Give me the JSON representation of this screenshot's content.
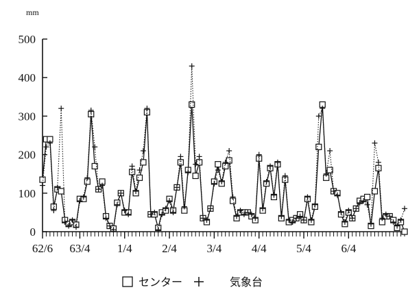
{
  "chart_data": {
    "type": "line",
    "unit_label": "mm",
    "ylim": [
      0,
      500
    ],
    "yticks": [
      0,
      100,
      200,
      300,
      400,
      500
    ],
    "ytick_labels": [
      "0",
      "100",
      "200",
      "300",
      "400",
      "500"
    ],
    "xlim": [
      0,
      97
    ],
    "xticks": [
      {
        "x": 0,
        "label": "62/6"
      },
      {
        "x": 10,
        "label": "63/4"
      },
      {
        "x": 22,
        "label": "1/4"
      },
      {
        "x": 34,
        "label": "2/4"
      },
      {
        "x": 46,
        "label": "3/4"
      },
      {
        "x": 58,
        "label": "4/4"
      },
      {
        "x": 70,
        "label": "5/4"
      },
      {
        "x": 82,
        "label": "6/4"
      }
    ],
    "grid": false,
    "legend_position": "bottom-center",
    "legend": [
      "センター",
      "気象台"
    ],
    "series": [
      {
        "name": "センター",
        "marker": "square",
        "line": "solid",
        "values": [
          135,
          240,
          240,
          65,
          110,
          105,
          30,
          20,
          25,
          18,
          85,
          85,
          130,
          305,
          170,
          110,
          130,
          40,
          15,
          8,
          75,
          100,
          50,
          50,
          155,
          100,
          140,
          180,
          310,
          45,
          45,
          10,
          50,
          55,
          85,
          55,
          115,
          180,
          55,
          160,
          330,
          145,
          180,
          35,
          25,
          60,
          130,
          175,
          125,
          170,
          185,
          80,
          35,
          50,
          50,
          50,
          40,
          30,
          190,
          55,
          125,
          165,
          90,
          175,
          35,
          135,
          25,
          30,
          35,
          45,
          30,
          85,
          25,
          65,
          220,
          330,
          140,
          160,
          105,
          100,
          45,
          20,
          50,
          35,
          60,
          80,
          85,
          90,
          15,
          105,
          165,
          25,
          40,
          40,
          30,
          10,
          25,
          0
        ]
      },
      {
        "name": "気象台",
        "marker": "plus",
        "line": "dotted",
        "values": [
          120,
          220,
          230,
          55,
          115,
          320,
          25,
          15,
          30,
          12,
          80,
          90,
          140,
          315,
          220,
          110,
          120,
          35,
          15,
          5,
          70,
          100,
          55,
          45,
          170,
          105,
          160,
          210,
          320,
          45,
          50,
          5,
          45,
          60,
          80,
          50,
          115,
          195,
          65,
          155,
          430,
          175,
          195,
          35,
          30,
          60,
          125,
          160,
          130,
          180,
          210,
          90,
          40,
          55,
          45,
          50,
          45,
          35,
          200,
          60,
          130,
          170,
          95,
          180,
          40,
          145,
          30,
          25,
          35,
          40,
          30,
          90,
          30,
          70,
          300,
          320,
          150,
          210,
          105,
          95,
          50,
          25,
          55,
          35,
          60,
          75,
          80,
          70,
          20,
          230,
          180,
          35,
          45,
          40,
          25,
          15,
          30,
          60
        ]
      }
    ]
  }
}
